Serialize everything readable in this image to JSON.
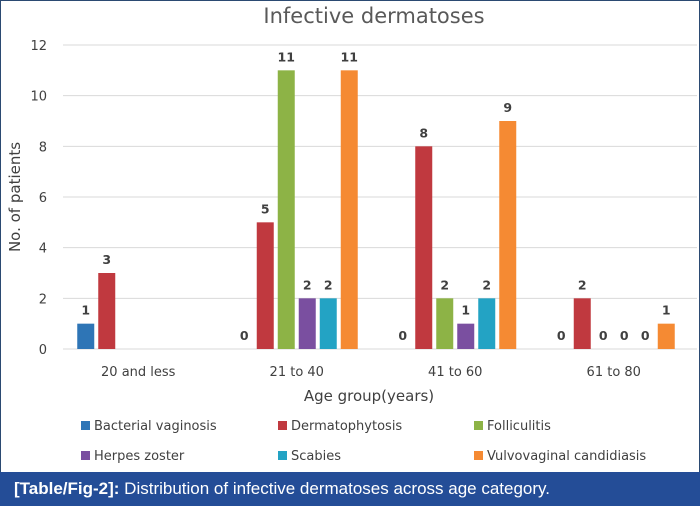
{
  "chart_data": {
    "type": "bar",
    "title": "Infective dermatoses",
    "xlabel": "Age group(years)",
    "ylabel": "No. of patients",
    "ylim": [
      0,
      12
    ],
    "yticks": [
      0,
      2,
      4,
      6,
      8,
      10,
      12
    ],
    "grid": true,
    "legend_position": "bottom",
    "categories": [
      "20 and less",
      "21 to 40",
      "41 to 60",
      "61 to 80"
    ],
    "series": [
      {
        "name": "Bacterial vaginosis",
        "color": "#2e75b6",
        "values": [
          1,
          0,
          0,
          0
        ],
        "labels": [
          "1",
          "0",
          "0",
          "0"
        ]
      },
      {
        "name": "Dermatophytosis",
        "color": "#c0393f",
        "values": [
          3,
          5,
          8,
          2
        ],
        "labels": [
          "3",
          "5",
          "8",
          "2"
        ]
      },
      {
        "name": "Folliculitis",
        "color": "#8db346",
        "values": [
          null,
          11,
          2,
          0
        ],
        "labels": [
          "",
          "11",
          "2",
          "0"
        ]
      },
      {
        "name": "Herpes zoster",
        "color": "#7a4fa0",
        "values": [
          null,
          2,
          1,
          0
        ],
        "labels": [
          "",
          "2",
          "1",
          "0"
        ]
      },
      {
        "name": "Scabies",
        "color": "#23a3c4",
        "values": [
          null,
          2,
          2,
          0
        ],
        "labels": [
          "",
          "2",
          "2",
          "0"
        ]
      },
      {
        "name": "Vulvovaginal candidiasis",
        "color": "#f58a33",
        "values": [
          null,
          11,
          9,
          1
        ],
        "labels": [
          "",
          "11",
          "9",
          "1"
        ]
      }
    ]
  },
  "caption": {
    "label": "[Table/Fig-2]:",
    "text": " Distribution of infective dermatoses across age category."
  }
}
